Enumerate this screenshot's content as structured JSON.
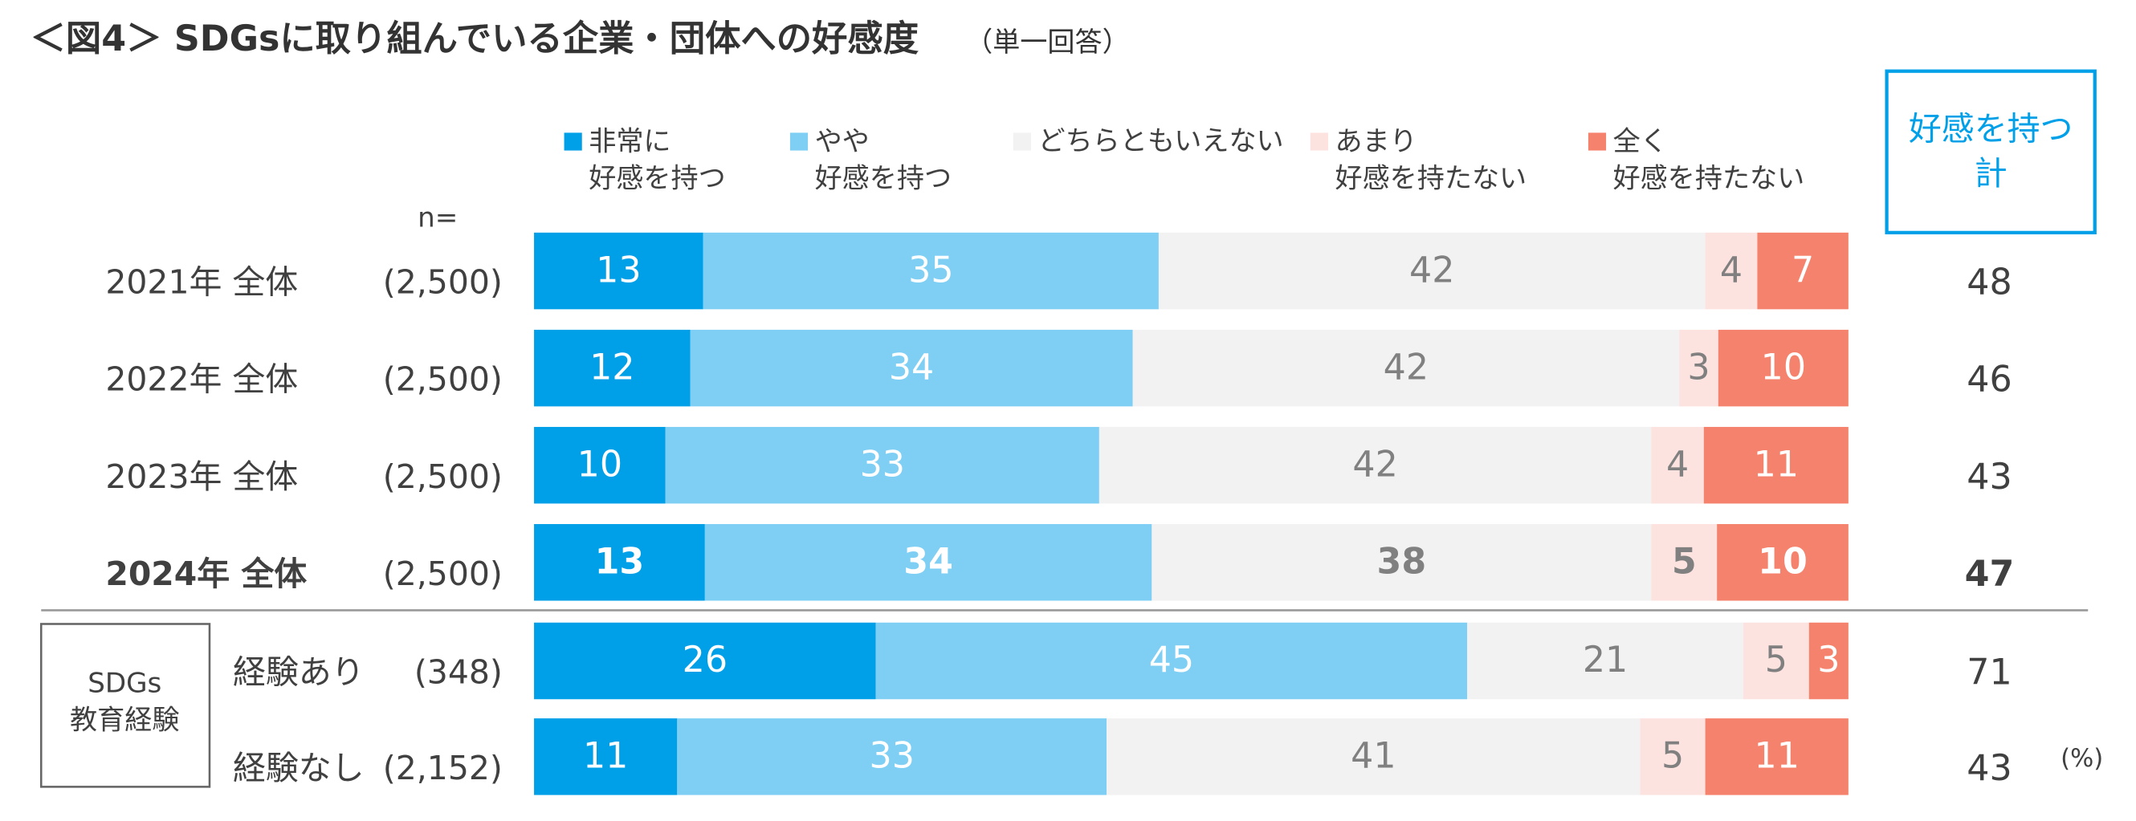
{
  "chart_data": {
    "type": "bar",
    "orientation": "horizontal",
    "stacked": true,
    "title": "＜図4＞ SDGsに取り組んでいる企業・団体への好感度",
    "subtitle": "（単一回答）",
    "n_header": "n=",
    "categories": [
      "2021年 全体",
      "2022年 全体",
      "2023年 全体",
      "2024年 全体",
      "経験あり",
      "経験なし"
    ],
    "sample_sizes": [
      "(2,500)",
      "(2,500)",
      "(2,500)",
      "(2,500)",
      "(348)",
      "(2,152)"
    ],
    "group_label": "SDGs\n教育経験",
    "group_start": 4,
    "bold_category": 3,
    "series": [
      {
        "name": "非常に\n好感を持つ",
        "color": "#00a0e9",
        "label_color": "#ffffff",
        "values": [
          13,
          12,
          10,
          13,
          26,
          11
        ]
      },
      {
        "name": "やや\n好感を持つ",
        "color": "#7fcff5",
        "label_color": "#ffffff",
        "values": [
          35,
          34,
          33,
          34,
          45,
          33
        ]
      },
      {
        "name": "どちらともいえない",
        "color": "#f2f2f2",
        "label_color": "#808080",
        "values": [
          42,
          42,
          42,
          38,
          21,
          41
        ]
      },
      {
        "name": "あまり\n好感を持たない",
        "color": "#fde3df",
        "label_color": "#808080",
        "values": [
          4,
          3,
          4,
          5,
          5,
          5
        ]
      },
      {
        "name": "全く\n好感を持たない",
        "color": "#f5826c",
        "label_color": "#ffffff",
        "values": [
          7,
          10,
          11,
          10,
          3,
          11
        ]
      }
    ],
    "totals": {
      "name": "好感を持つ\n計",
      "color": "#00a0e9",
      "values": [
        48,
        46,
        43,
        47,
        71,
        43
      ]
    },
    "unit": "(%)"
  }
}
